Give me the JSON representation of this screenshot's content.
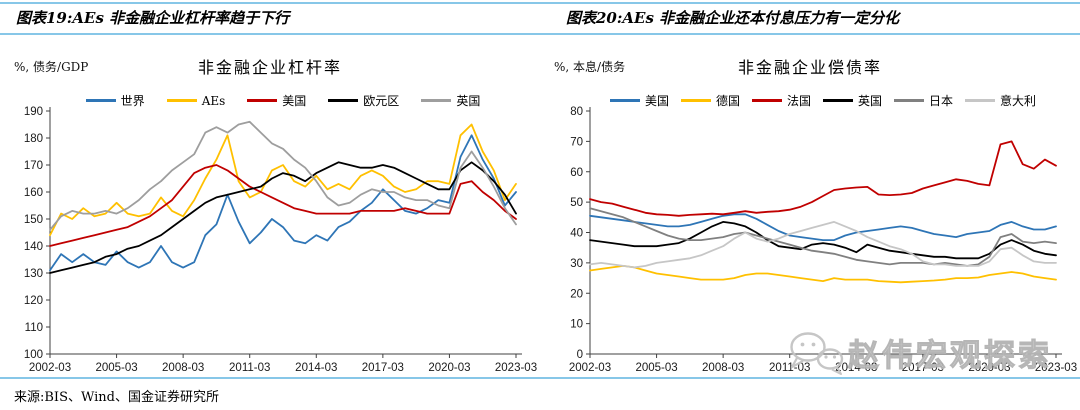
{
  "header": {
    "left_title": "图表19:AEs 非金融企业杠杆率趋于下行",
    "right_title": "图表20:AEs 非金融企业还本付息压力有一定分化"
  },
  "footer": {
    "source": "来源:BIS、Wind、国金证券研究所"
  },
  "watermark": {
    "text": "赵伟宏观探索",
    "icon": "wechat-icon"
  },
  "style": {
    "rule_color": "#87C7E8",
    "axis_color": "#404040",
    "watermark_color": "#c3c3c3"
  },
  "chart_data": [
    {
      "type": "line",
      "title": "非金融企业杠杆率",
      "unit_label": "%, 债务/GDP",
      "x_range": [
        "2002-03",
        "2023-03"
      ],
      "x_frequency": "semiannual",
      "x_tick_labels": [
        "2002-03",
        "2005-03",
        "2008-03",
        "2011-03",
        "2014-03",
        "2017-03",
        "2020-03",
        "2023-03"
      ],
      "x_tick_indices": [
        0,
        6,
        12,
        18,
        24,
        30,
        36,
        42
      ],
      "ylim": [
        100,
        190
      ],
      "ytick_step": 10,
      "grid": false,
      "legend_position": "top",
      "series": [
        {
          "name": "世界",
          "color": "#2E75B6",
          "values": [
            131,
            137,
            134,
            137,
            134,
            133,
            138,
            134,
            132,
            134,
            140,
            134,
            132,
            134,
            144,
            148,
            159,
            149,
            141,
            145,
            150,
            147,
            142,
            141,
            144,
            142,
            147,
            149,
            153,
            156,
            161,
            157,
            153,
            152,
            154,
            157,
            156,
            173,
            181,
            172,
            165,
            155,
            160
          ]
        },
        {
          "name": "AEs",
          "color": "#FFC000",
          "values": [
            144,
            152,
            150,
            154,
            151,
            152,
            156,
            152,
            151,
            152,
            158,
            153,
            151,
            157,
            165,
            172,
            181,
            164,
            158,
            160,
            168,
            170,
            164,
            162,
            166,
            161,
            163,
            161,
            166,
            168,
            166,
            162,
            160,
            161,
            164,
            164,
            163,
            181,
            185,
            175,
            168,
            157,
            163
          ]
        },
        {
          "name": "美国",
          "color": "#C00000",
          "values": [
            140,
            141,
            142,
            143,
            144,
            145,
            146,
            147,
            149,
            151,
            154,
            157,
            162,
            167,
            169,
            170,
            168,
            165,
            162,
            160,
            158,
            156,
            154,
            153,
            152,
            152,
            152,
            152,
            153,
            153,
            153,
            153,
            154,
            153,
            152,
            152,
            152,
            163,
            164,
            160,
            157,
            153,
            150
          ]
        },
        {
          "name": "欧元区",
          "color": "#000000",
          "values": [
            130,
            131,
            132,
            133,
            134,
            136,
            137,
            139,
            140,
            142,
            144,
            147,
            150,
            153,
            156,
            158,
            159,
            160,
            161,
            162,
            165,
            167,
            166,
            164,
            167,
            169,
            171,
            170,
            169,
            169,
            170,
            169,
            167,
            165,
            163,
            161,
            161,
            168,
            171,
            168,
            164,
            159,
            152
          ]
        },
        {
          "name": "英国",
          "color": "#9E9E9E",
          "values": [
            146,
            151,
            153,
            152,
            152,
            153,
            152,
            154,
            157,
            161,
            164,
            168,
            171,
            174,
            182,
            184,
            182,
            185,
            186,
            182,
            178,
            176,
            172,
            169,
            164,
            158,
            155,
            156,
            159,
            161,
            160,
            160,
            158,
            157,
            157,
            155,
            154,
            169,
            175,
            169,
            162,
            154,
            148
          ]
        }
      ]
    },
    {
      "type": "line",
      "title": "非金融企业偿债率",
      "unit_label": "%, 本息/债务",
      "x_range": [
        "2002-03",
        "2023-03"
      ],
      "x_frequency": "semiannual",
      "x_tick_labels": [
        "2002-03",
        "2005-03",
        "2008-03",
        "2011-03",
        "2014-03",
        "2017-03",
        "2020-03",
        "2023-03"
      ],
      "x_tick_indices": [
        0,
        6,
        12,
        18,
        24,
        30,
        36,
        42
      ],
      "ylim": [
        0,
        80
      ],
      "ytick_step": 10,
      "grid": false,
      "legend_position": "top",
      "series": [
        {
          "name": "美国",
          "color": "#2E75B6",
          "values": [
            45.5,
            45,
            44.5,
            44,
            43.5,
            43,
            42.5,
            42,
            42,
            42.5,
            43.5,
            44.5,
            45.5,
            46,
            46,
            44.5,
            42.5,
            40.5,
            39,
            38.5,
            38,
            37.5,
            37.5,
            39,
            40,
            40.5,
            41,
            41.5,
            42,
            41.5,
            40.5,
            39.5,
            39,
            38.5,
            39.5,
            40,
            40.5,
            42.5,
            43.5,
            42,
            41,
            41,
            42
          ]
        },
        {
          "name": "德国",
          "color": "#FFC000",
          "values": [
            27.5,
            28,
            28.5,
            29,
            28.5,
            27.5,
            26.5,
            26,
            25.5,
            25,
            24.5,
            24.5,
            24.5,
            25,
            26,
            26.5,
            26.5,
            26,
            25.5,
            25,
            24.5,
            24,
            25,
            24.5,
            24.5,
            24.5,
            24,
            23.8,
            23.6,
            23.8,
            24,
            24.2,
            24.5,
            25,
            25,
            25.2,
            26,
            26.5,
            27,
            26.5,
            25.5,
            25,
            24.5
          ]
        },
        {
          "name": "法国",
          "color": "#C00000",
          "values": [
            51,
            50,
            49.5,
            48.5,
            47.5,
            46.5,
            46,
            45.8,
            45.5,
            45.8,
            46,
            46.2,
            46,
            46.5,
            47,
            46.5,
            46.8,
            47,
            47.5,
            48.5,
            50,
            52,
            54,
            54.5,
            54.8,
            55,
            52.5,
            52.3,
            52.5,
            53,
            54.5,
            55.5,
            56.5,
            57.5,
            57,
            56,
            55.5,
            69,
            70,
            62.5,
            61,
            64,
            62
          ]
        },
        {
          "name": "英国",
          "color": "#000000",
          "values": [
            37.5,
            37,
            36.5,
            36,
            35.5,
            35.5,
            35.5,
            36,
            36.5,
            38,
            40,
            42,
            43.5,
            43,
            42,
            40,
            37.5,
            35.5,
            35,
            34.5,
            36,
            36.5,
            36,
            35,
            33.5,
            36,
            35,
            34,
            33.5,
            33,
            32.5,
            32,
            32,
            31.5,
            31.5,
            31.5,
            33,
            36,
            37.5,
            36,
            34,
            33,
            32.5
          ]
        },
        {
          "name": "日本",
          "color": "#808080",
          "values": [
            48,
            47,
            46,
            45,
            43.5,
            42,
            40.5,
            39,
            38,
            37.5,
            37.5,
            38,
            38.5,
            39.5,
            40,
            39,
            38,
            37,
            36,
            35,
            34,
            33.5,
            33,
            32,
            31,
            30.5,
            30,
            29.5,
            30,
            30,
            30,
            29.5,
            30,
            29.5,
            29,
            29.5,
            32,
            38.5,
            39.5,
            37,
            36.5,
            37,
            36.5
          ]
        },
        {
          "name": "意大利",
          "color": "#C6C6C6",
          "values": [
            29.5,
            30,
            29.5,
            29,
            28.5,
            29,
            30,
            30.5,
            31,
            31.5,
            32.5,
            34,
            35.5,
            38,
            40,
            38,
            37,
            38,
            39.5,
            40.5,
            41.5,
            42.5,
            43.5,
            42,
            40.5,
            38.5,
            37,
            35.5,
            34.5,
            33,
            30.5,
            29.5,
            29.5,
            29,
            29,
            29,
            30.5,
            34.5,
            35,
            32.5,
            30.5,
            30,
            30
          ]
        }
      ]
    }
  ]
}
